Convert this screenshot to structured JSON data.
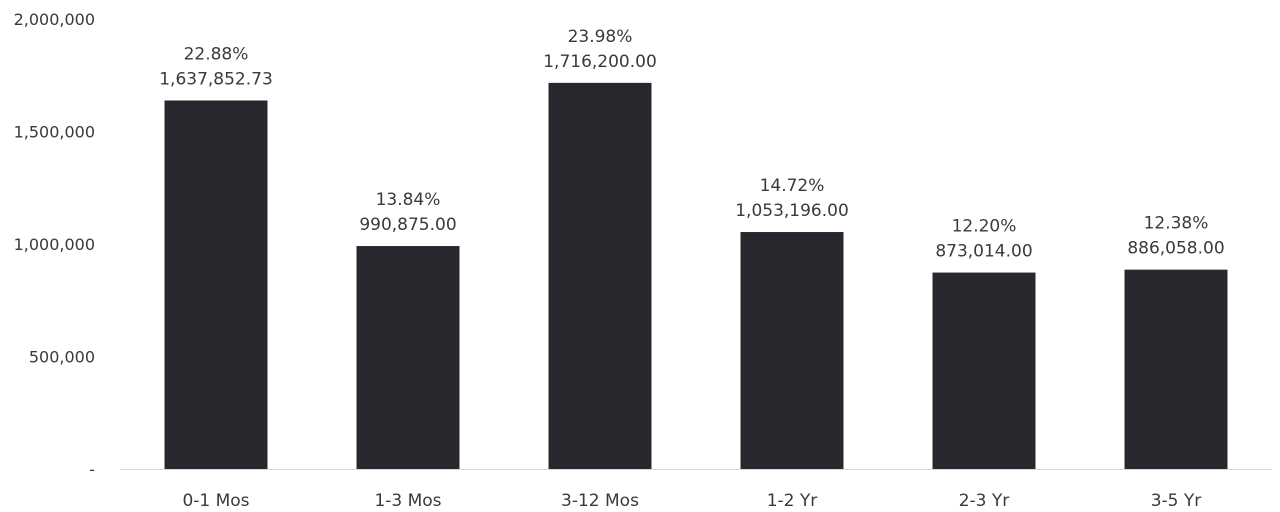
{
  "chart_data": {
    "type": "bar",
    "title": "",
    "xlabel": "",
    "ylabel": "",
    "ylim": [
      0,
      2000000
    ],
    "grid": false,
    "y_ticks": [
      {
        "value": 0,
        "label": "-"
      },
      {
        "value": 500000,
        "label": "500,000"
      },
      {
        "value": 1000000,
        "label": "1,000,000"
      },
      {
        "value": 1500000,
        "label": "1,500,000"
      },
      {
        "value": 2000000,
        "label": "2,000,000"
      }
    ],
    "categories": [
      "0-1 Mos",
      "1-3 Mos",
      "3-12 Mos",
      "1-2 Yr",
      "2-3 Yr",
      "3-5 Yr"
    ],
    "values": [
      1637852.73,
      990875.0,
      1716200.0,
      1053196.0,
      873014.0,
      886058.0
    ],
    "value_labels": [
      "1,637,852.73",
      "990,875.00",
      "1,716,200.00",
      "1,053,196.00",
      "873,014.00",
      "886,058.00"
    ],
    "percent_labels": [
      "22.88%",
      "13.84%",
      "23.98%",
      "14.72%",
      "12.20%",
      "12.38%"
    ],
    "colors": {
      "bar": "#28272d",
      "axis": "#d9d9d9",
      "text": "#3a3a3a"
    }
  }
}
